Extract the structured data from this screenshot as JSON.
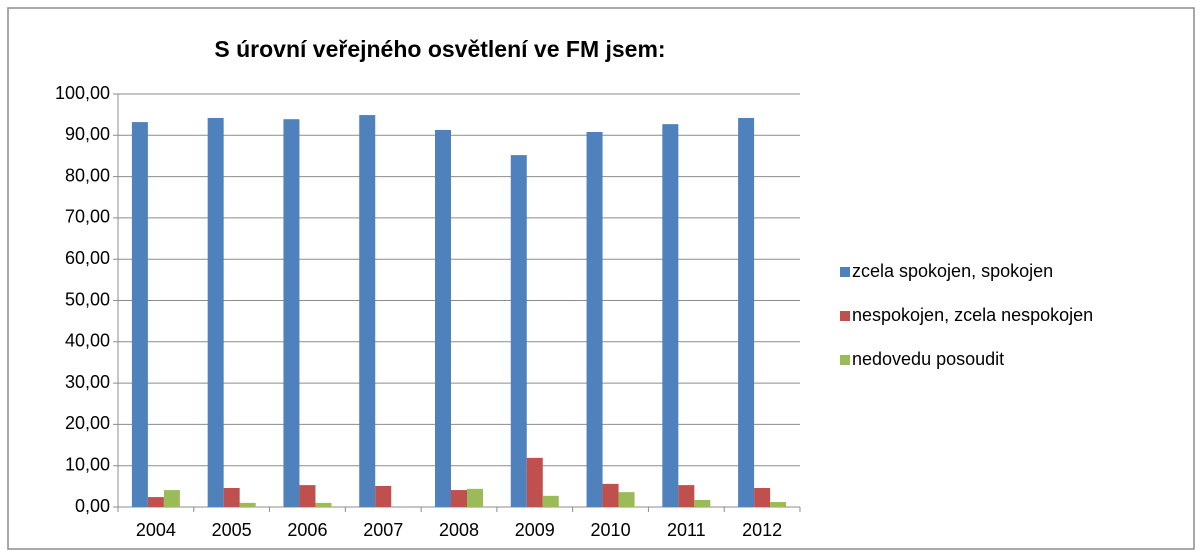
{
  "chart_data": {
    "type": "bar",
    "title": "S úrovní veřejného osvětlení ve FM jsem:",
    "categories": [
      "2004",
      "2005",
      "2006",
      "2007",
      "2008",
      "2009",
      "2010",
      "2011",
      "2012"
    ],
    "series": [
      {
        "name": "zcela spokojen, spokojen",
        "color": "#4f81bd",
        "values": [
          93.2,
          94.2,
          93.9,
          94.9,
          91.3,
          85.2,
          90.8,
          92.7,
          94.2
        ]
      },
      {
        "name": "nespokojen, zcela nespokojen",
        "color": "#c0504d",
        "values": [
          2.4,
          4.6,
          5.3,
          5.1,
          4.1,
          11.9,
          5.6,
          5.3,
          4.6
        ]
      },
      {
        "name": "nedovedu posoudit",
        "color": "#9bbb59",
        "values": [
          4.1,
          1.0,
          1.0,
          0,
          4.4,
          2.7,
          3.6,
          1.7,
          1.2
        ]
      }
    ],
    "ylim": [
      0,
      100
    ],
    "yticks": [
      {
        "value": 0,
        "label": "0,00"
      },
      {
        "value": 10,
        "label": "10,00"
      },
      {
        "value": 20,
        "label": "20,00"
      },
      {
        "value": 30,
        "label": "30,00"
      },
      {
        "value": 40,
        "label": "40,00"
      },
      {
        "value": 50,
        "label": "50,00"
      },
      {
        "value": 60,
        "label": "60,00"
      },
      {
        "value": 70,
        "label": "70,00"
      },
      {
        "value": 80,
        "label": "80,00"
      },
      {
        "value": 90,
        "label": "90,00"
      },
      {
        "value": 100,
        "label": "100,00"
      }
    ],
    "grid": true,
    "legend": "right"
  }
}
